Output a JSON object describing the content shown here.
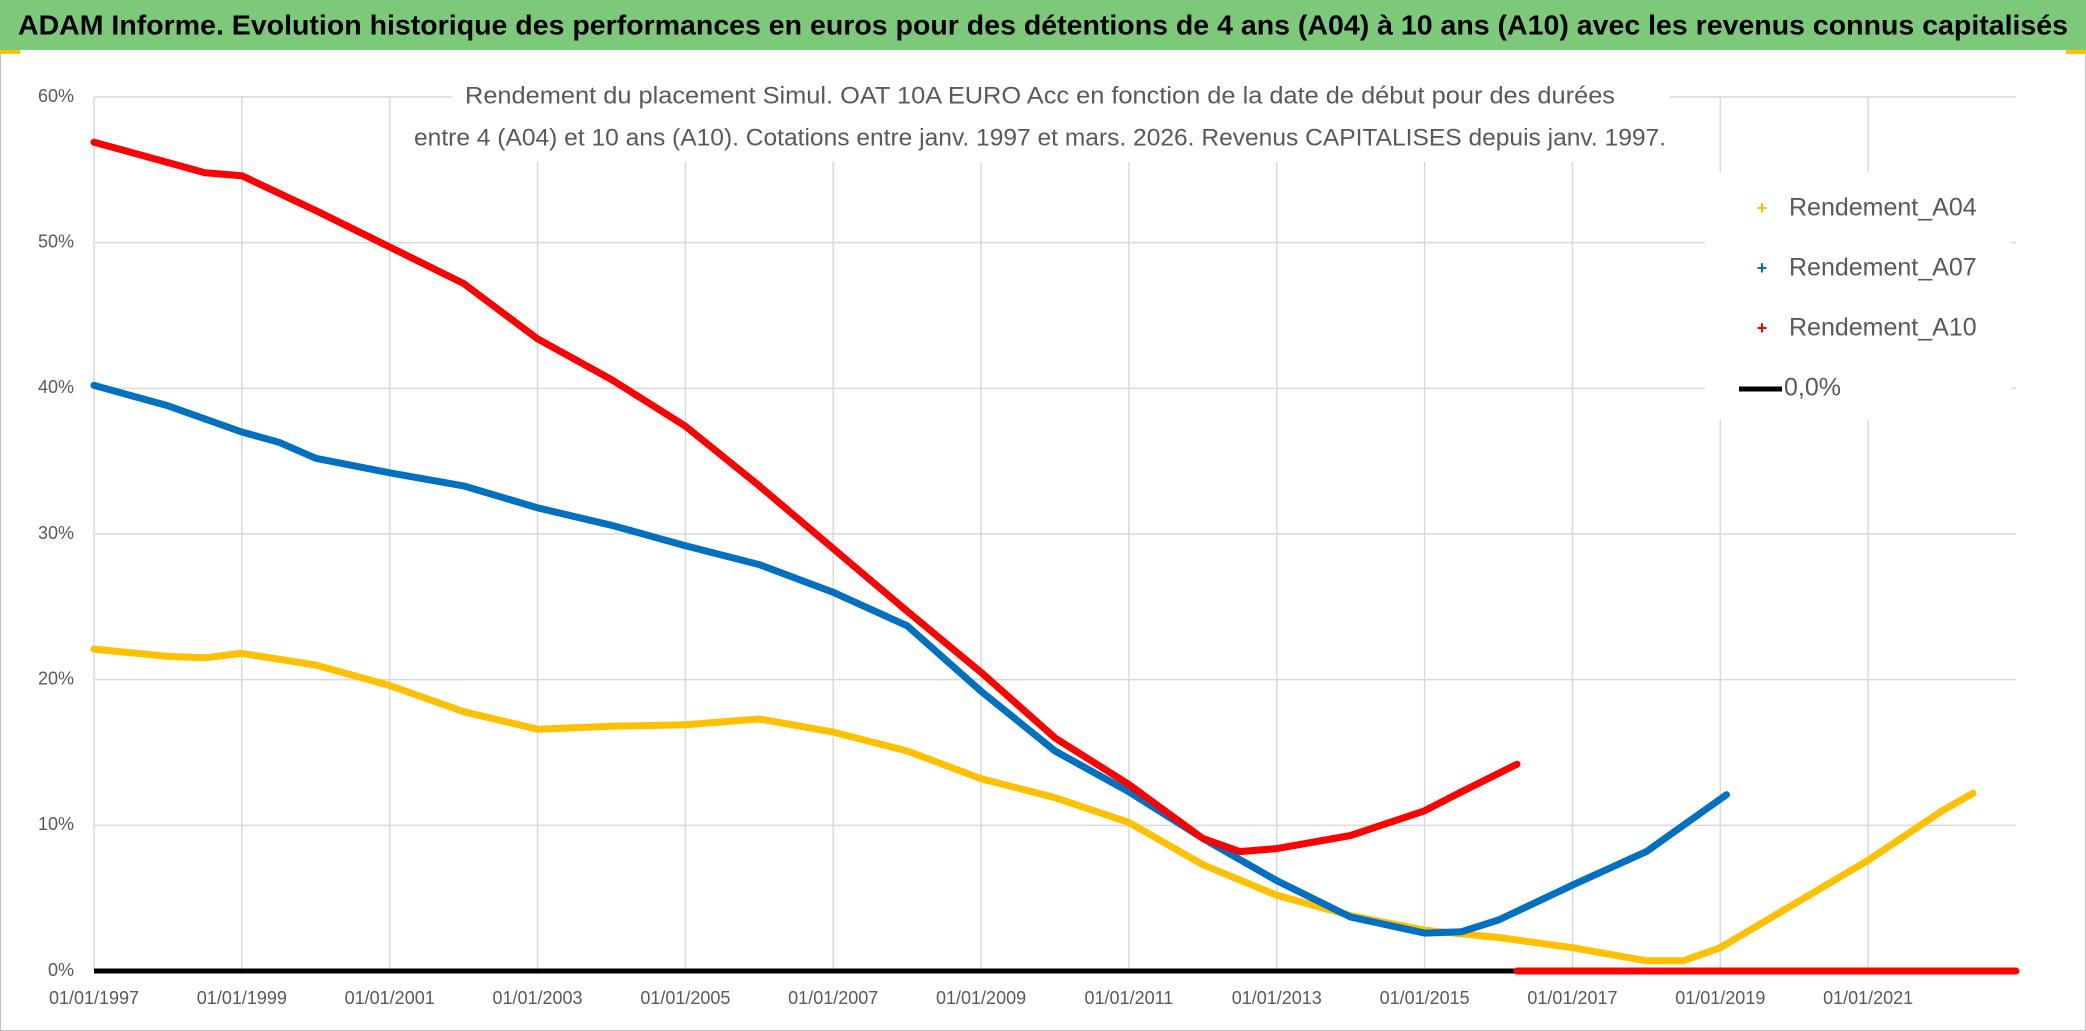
{
  "header": {
    "title": "ADAM Informe. Evolution historique des performances en euros pour des détentions de 4 ans (A04) à 10 ans (A10) avec les revenus connus capitalisés"
  },
  "chart_data": {
    "type": "line",
    "title": [
      "Rendement du placement Simul. OAT 10A EURO Acc en fonction de la date de début pour des durées",
      "entre 4 (A04) et 10 ans (A10). Cotations entre janv. 1997 et mars. 2026. Revenus CAPITALISES depuis janv. 1997."
    ],
    "xlim": [
      "01/01/1997",
      "01/01/2023"
    ],
    "xticks": [
      "01/01/1997",
      "01/01/1999",
      "01/01/2001",
      "01/01/2003",
      "01/01/2005",
      "01/01/2007",
      "01/01/2009",
      "01/01/2011",
      "01/01/2013",
      "01/01/2015",
      "01/01/2017",
      "01/01/2019",
      "01/01/2021"
    ],
    "ylim": [
      0,
      60
    ],
    "yticks": [
      {
        "value": 0,
        "label": "0%"
      },
      {
        "value": 10,
        "label": "10%"
      },
      {
        "value": 20,
        "label": "20%"
      },
      {
        "value": 30,
        "label": "30%"
      },
      {
        "value": 40,
        "label": "40%"
      },
      {
        "value": 50,
        "label": "50%"
      },
      {
        "value": 60,
        "label": "60%"
      }
    ],
    "grid": true,
    "legend": "right",
    "series": [
      {
        "name": "Rendement_A04",
        "color": "#ffc000",
        "marker": "+",
        "x": [
          "01/01/1997",
          "01/01/1998",
          "01/07/1998",
          "01/01/1999",
          "01/01/2000",
          "01/01/2001",
          "01/01/2002",
          "01/01/2003",
          "01/01/2004",
          "01/01/2005",
          "01/01/2006",
          "01/01/2007",
          "01/01/2008",
          "01/01/2009",
          "01/01/2010",
          "01/01/2011",
          "01/01/2012",
          "01/01/2013",
          "01/01/2014",
          "01/01/2015",
          "01/01/2016",
          "01/01/2017",
          "01/01/2018",
          "01/07/2018",
          "01/01/2019",
          "01/01/2020",
          "01/01/2021",
          "01/01/2022",
          "01/06/2022"
        ],
        "values": [
          22.1,
          21.6,
          21.5,
          21.8,
          21.0,
          19.6,
          17.8,
          16.6,
          16.8,
          16.9,
          17.3,
          16.4,
          15.1,
          13.2,
          11.9,
          10.2,
          7.3,
          5.2,
          3.8,
          2.8,
          2.3,
          1.6,
          0.7,
          0.7,
          1.6,
          4.6,
          7.6,
          11.0,
          12.2
        ]
      },
      {
        "name": "Rendement_A07",
        "color": "#0070c0",
        "marker": "+",
        "x": [
          "01/01/1997",
          "01/01/1998",
          "01/01/1999",
          "01/07/1999",
          "01/01/2000",
          "01/01/2001",
          "01/01/2002",
          "01/01/2003",
          "01/01/2004",
          "01/01/2005",
          "01/01/2006",
          "01/01/2007",
          "01/01/2008",
          "01/01/2009",
          "01/01/2010",
          "01/01/2011",
          "01/01/2012",
          "01/01/2013",
          "01/01/2014",
          "01/01/2015",
          "01/07/2015",
          "01/01/2016",
          "01/01/2017",
          "01/01/2018",
          "01/02/2019"
        ],
        "values": [
          40.2,
          38.8,
          37.0,
          36.3,
          35.2,
          34.2,
          33.3,
          31.8,
          30.6,
          29.2,
          27.9,
          26.0,
          23.7,
          19.2,
          15.1,
          12.3,
          9.1,
          6.2,
          3.7,
          2.6,
          2.7,
          3.5,
          5.9,
          8.2,
          12.1
        ]
      },
      {
        "name": "Rendement_A10",
        "color": "#ff0000",
        "marker": "+",
        "x": [
          "01/01/1997",
          "01/01/1998",
          "01/07/1998",
          "01/01/1999",
          "01/01/2000",
          "01/01/2001",
          "01/01/2002",
          "01/01/2003",
          "01/01/2004",
          "01/01/2005",
          "01/01/2006",
          "01/01/2007",
          "01/01/2008",
          "01/01/2009",
          "01/01/2010",
          "01/01/2011",
          "01/01/2012",
          "01/07/2012",
          "01/01/2013",
          "01/01/2014",
          "01/01/2015",
          "01/07/2015",
          "01/04/2016",
          "01/05/2016",
          "01/04/2016",
          "01/01/2023"
        ],
        "values": [
          56.9,
          55.5,
          54.8,
          54.6,
          52.2,
          49.7,
          47.2,
          43.4,
          40.6,
          37.4,
          33.3,
          29.0,
          24.7,
          20.5,
          16.0,
          12.8,
          9.1,
          8.2,
          8.4,
          9.3,
          11.0,
          12.3,
          14.2,
          null,
          0,
          0
        ]
      },
      {
        "name": "0,0%",
        "color": "#000000",
        "x": [
          "01/01/1997",
          "01/01/2023"
        ],
        "values": [
          0,
          0
        ]
      }
    ]
  }
}
